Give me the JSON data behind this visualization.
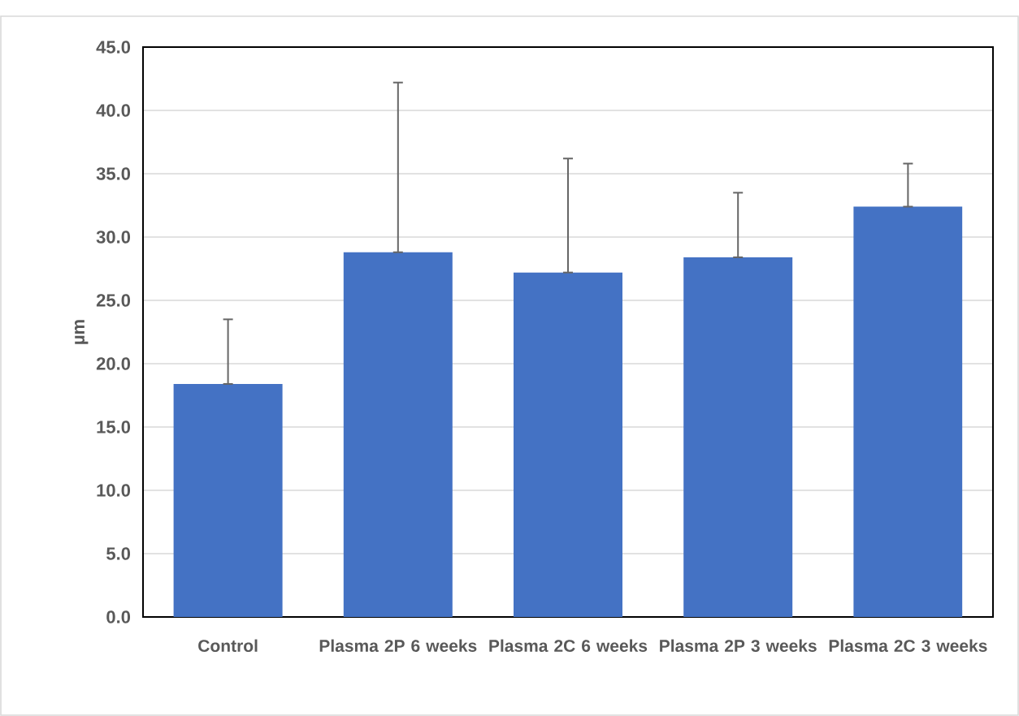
{
  "chart_data": {
    "type": "bar",
    "ylabel": "µm",
    "categories": [
      "Control",
      "Plasma 2P 6 weeks",
      "Plasma 2C 6 weeks",
      "Plasma 2P 3 weeks",
      "Plasma 2C 3 weeks"
    ],
    "values": [
      18.4,
      28.8,
      27.2,
      28.4,
      32.4
    ],
    "errors": [
      [
        18.4,
        23.5
      ],
      [
        28.8,
        42.2
      ],
      [
        27.2,
        36.2
      ],
      [
        28.4,
        33.5
      ],
      [
        32.4,
        35.8
      ]
    ],
    "color": "#4472c4",
    "ylim": [
      0,
      45
    ],
    "yticks": [
      {
        "value": 0,
        "label": "0.0"
      },
      {
        "value": 5,
        "label": "5.0"
      },
      {
        "value": 10,
        "label": "10.0"
      },
      {
        "value": 15,
        "label": "15.0"
      },
      {
        "value": 20,
        "label": "20.0"
      },
      {
        "value": 25,
        "label": "25.0"
      },
      {
        "value": 30,
        "label": "30.0"
      },
      {
        "value": 35,
        "label": "35.0"
      },
      {
        "value": 40,
        "label": "40.0"
      },
      {
        "value": 45,
        "label": "45.0"
      }
    ],
    "grid": "y"
  }
}
